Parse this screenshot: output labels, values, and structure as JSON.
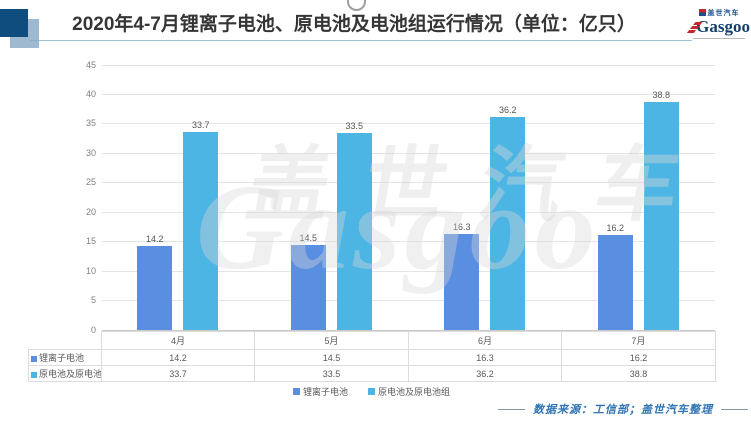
{
  "header": {
    "title": "2020年4-7月锂离子电池、原电池及电池组运行情况（单位：亿只）",
    "logo_cn": "盖世汽车",
    "logo_en": "Gasgoo"
  },
  "watermark": {
    "cn": "盖世汽车",
    "en": "Gasgoo"
  },
  "chart_data": {
    "type": "bar",
    "title": "2020年4-7月锂离子电池、原电池及电池组运行情况（单位：亿只）",
    "unit": "亿只",
    "categories": [
      "4月",
      "5月",
      "6月",
      "7月"
    ],
    "series": [
      {
        "name": "锂离子电池",
        "values": [
          14.2,
          14.5,
          16.3,
          16.2
        ],
        "color": "#5A8EE0"
      },
      {
        "name": "原电池及原电池组",
        "values": [
          33.7,
          33.5,
          36.2,
          38.8
        ],
        "color": "#4DB5E4"
      }
    ],
    "ylim": [
      0,
      45
    ],
    "ytick_step": 5,
    "grid": true,
    "legend_position": "bottom",
    "table_shown": true
  },
  "footer": {
    "source": "数据来源：工信部；盖世汽车整理"
  }
}
